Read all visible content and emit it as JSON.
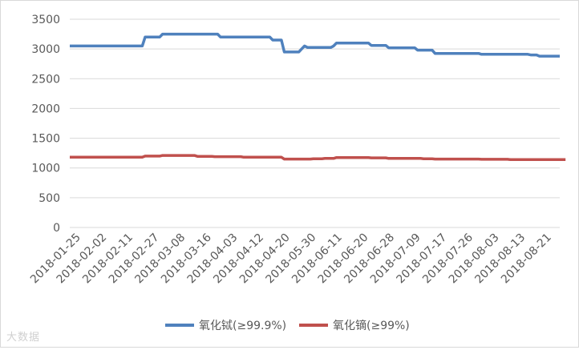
{
  "chart_data": {
    "type": "line",
    "title": "",
    "xlabel": "",
    "ylabel": "",
    "ylim": [
      0,
      3500
    ],
    "yticks": [
      0,
      500,
      1000,
      1500,
      2000,
      2500,
      3000,
      3500
    ],
    "grid": "horizontal",
    "legend_position": "bottom",
    "x_tick_labels": [
      "2018-01-25",
      "2018-02-02",
      "2018-02-11",
      "2018-02-27",
      "2018-03-08",
      "2018-03-16",
      "2018-04-03",
      "2018-04-12",
      "2018-04-20",
      "2018-05-30",
      "2018-06-11",
      "2018-06-20",
      "2018-06-28",
      "2018-07-09",
      "2018-07-17",
      "2018-07-26",
      "2018-08-03",
      "2018-08-13",
      "2018-08-21"
    ],
    "series": [
      {
        "name": "氧化铽(≥99.9%)",
        "color": "#4f81bd",
        "values": [
          3050,
          3050,
          3050,
          3050,
          3050,
          3050,
          3050,
          3050,
          3050,
          3050,
          3050,
          3050,
          3050,
          3050,
          3050,
          3050,
          3050,
          3050,
          3050,
          3050,
          3050,
          3050,
          3050,
          3050,
          3050,
          3050,
          3200,
          3200,
          3200,
          3200,
          3200,
          3200,
          3250,
          3250,
          3250,
          3250,
          3250,
          3250,
          3250,
          3250,
          3250,
          3250,
          3250,
          3250,
          3250,
          3250,
          3250,
          3250,
          3250,
          3250,
          3250,
          3250,
          3200,
          3200,
          3200,
          3200,
          3200,
          3200,
          3200,
          3200,
          3200,
          3200,
          3200,
          3200,
          3200,
          3200,
          3200,
          3200,
          3200,
          3200,
          3150,
          3150,
          3150,
          3150,
          2950,
          2950,
          2950,
          2950,
          2950,
          2950,
          3000,
          3050,
          3025,
          3025,
          3025,
          3025,
          3025,
          3025,
          3025,
          3025,
          3025,
          3050,
          3100,
          3100,
          3100,
          3100,
          3100,
          3100,
          3100,
          3100,
          3100,
          3100,
          3100,
          3100,
          3060,
          3060,
          3060,
          3060,
          3060,
          3060,
          3020,
          3020,
          3020,
          3020,
          3020,
          3020,
          3020,
          3020,
          3020,
          3020,
          2980,
          2980,
          2980,
          2980,
          2980,
          2980,
          2925,
          2925,
          2925,
          2925,
          2925,
          2925,
          2925,
          2925,
          2925,
          2925,
          2925,
          2925,
          2925,
          2925,
          2925,
          2925,
          2910,
          2910,
          2910,
          2910,
          2910,
          2910,
          2910,
          2910,
          2910,
          2910,
          2910,
          2910,
          2910,
          2910,
          2910,
          2910,
          2910,
          2900,
          2900,
          2900,
          2880,
          2880,
          2880,
          2880,
          2880,
          2880,
          2880,
          2880
        ]
      },
      {
        "name": "氧化镝(≥99%)",
        "color": "#c0504d",
        "values": [
          1180,
          1180,
          1180,
          1180,
          1180,
          1180,
          1180,
          1180,
          1180,
          1180,
          1180,
          1180,
          1180,
          1180,
          1180,
          1180,
          1180,
          1180,
          1180,
          1180,
          1180,
          1180,
          1180,
          1180,
          1180,
          1180,
          1200,
          1200,
          1200,
          1200,
          1200,
          1200,
          1210,
          1210,
          1210,
          1210,
          1210,
          1210,
          1210,
          1210,
          1210,
          1210,
          1210,
          1210,
          1195,
          1195,
          1195,
          1195,
          1195,
          1195,
          1190,
          1190,
          1190,
          1190,
          1190,
          1190,
          1190,
          1190,
          1190,
          1190,
          1180,
          1180,
          1180,
          1180,
          1180,
          1180,
          1180,
          1180,
          1180,
          1180,
          1180,
          1180,
          1180,
          1180,
          1150,
          1150,
          1150,
          1150,
          1150,
          1150,
          1150,
          1150,
          1150,
          1150,
          1155,
          1155,
          1155,
          1155,
          1160,
          1160,
          1160,
          1160,
          1175,
          1175,
          1175,
          1175,
          1175,
          1175,
          1175,
          1175,
          1175,
          1175,
          1175,
          1175,
          1170,
          1170,
          1170,
          1170,
          1170,
          1170,
          1160,
          1160,
          1160,
          1160,
          1160,
          1160,
          1160,
          1160,
          1160,
          1160,
          1160,
          1160,
          1155,
          1155,
          1155,
          1155,
          1150,
          1150,
          1150,
          1150,
          1150,
          1150,
          1150,
          1150,
          1150,
          1150,
          1150,
          1150,
          1150,
          1150,
          1150,
          1150,
          1145,
          1145,
          1145,
          1145,
          1145,
          1145,
          1145,
          1145,
          1145,
          1145,
          1140,
          1140,
          1140,
          1140,
          1140,
          1140,
          1140,
          1140,
          1140,
          1140,
          1140,
          1140,
          1140,
          1140,
          1140,
          1140,
          1140,
          1140,
          1140,
          1140
        ]
      }
    ]
  },
  "watermark": "大数据"
}
